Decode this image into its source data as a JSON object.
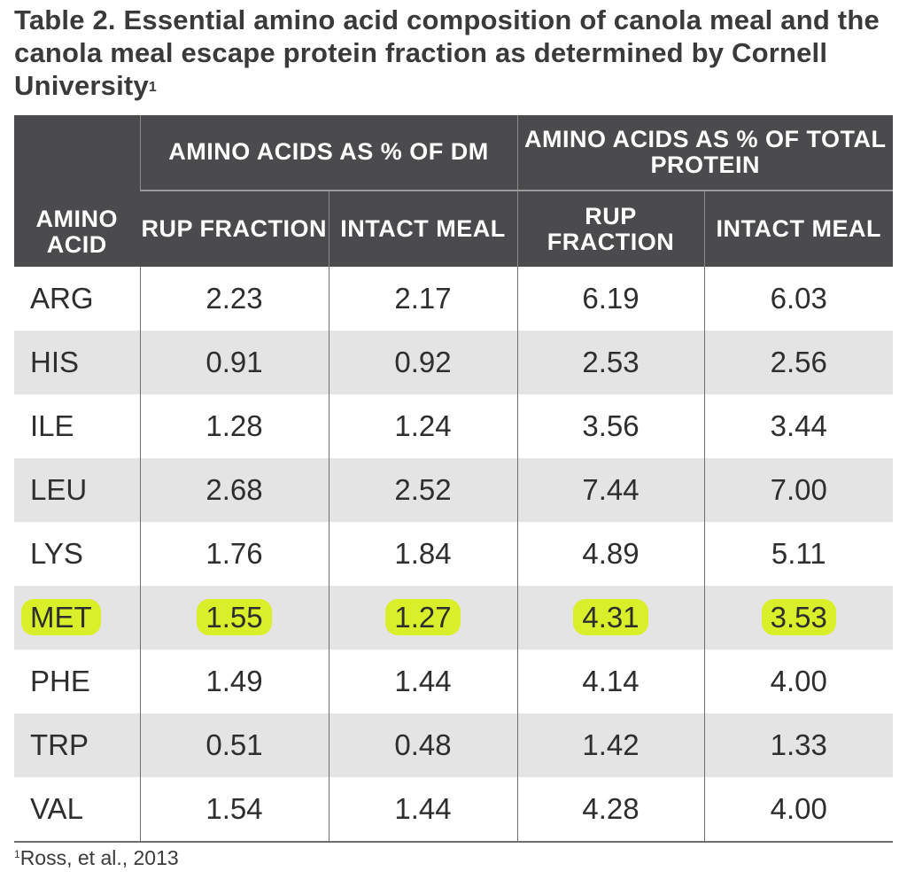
{
  "title": {
    "text": "Table 2. Essential amino acid composition of canola meal and the canola meal escape protein fraction as determined by Cornell University",
    "sup": "1"
  },
  "header": {
    "amino_acid": "AMINO ACID",
    "group_dm": "AMINO ACIDS AS % OF DM",
    "group_tp": "AMINO ACIDS AS % OF TOTAL PROTEIN",
    "rup": "RUP FRACTION",
    "intact": "INTACT MEAL"
  },
  "rows": [
    {
      "aa": "ARG",
      "dm_rup": "2.23",
      "dm_intact": "2.17",
      "tp_rup": "6.19",
      "tp_intact": "6.03"
    },
    {
      "aa": "HIS",
      "dm_rup": "0.91",
      "dm_intact": "0.92",
      "tp_rup": "2.53",
      "tp_intact": "2.56"
    },
    {
      "aa": "ILE",
      "dm_rup": "1.28",
      "dm_intact": "1.24",
      "tp_rup": "3.56",
      "tp_intact": "3.44"
    },
    {
      "aa": "LEU",
      "dm_rup": "2.68",
      "dm_intact": "2.52",
      "tp_rup": "7.44",
      "tp_intact": "7.00"
    },
    {
      "aa": "LYS",
      "dm_rup": "1.76",
      "dm_intact": "1.84",
      "tp_rup": "4.89",
      "tp_intact": "5.11"
    },
    {
      "aa": "MET",
      "dm_rup": "1.55",
      "dm_intact": "1.27",
      "tp_rup": "4.31",
      "tp_intact": "3.53"
    },
    {
      "aa": "PHE",
      "dm_rup": "1.49",
      "dm_intact": "1.44",
      "tp_rup": "4.14",
      "tp_intact": "4.00"
    },
    {
      "aa": "TRP",
      "dm_rup": "0.51",
      "dm_intact": "0.48",
      "tp_rup": "1.42",
      "tp_intact": "1.33"
    },
    {
      "aa": "VAL",
      "dm_rup": "1.54",
      "dm_intact": "1.44",
      "tp_rup": "4.28",
      "tp_intact": "4.00"
    }
  ],
  "footnote": {
    "sup": "1",
    "text": "Ross, et al., 2013"
  },
  "colors": {
    "header_bg": "#4b4b4d",
    "stripe": "#e4e4e4",
    "highlight": "#d9ef2a"
  }
}
